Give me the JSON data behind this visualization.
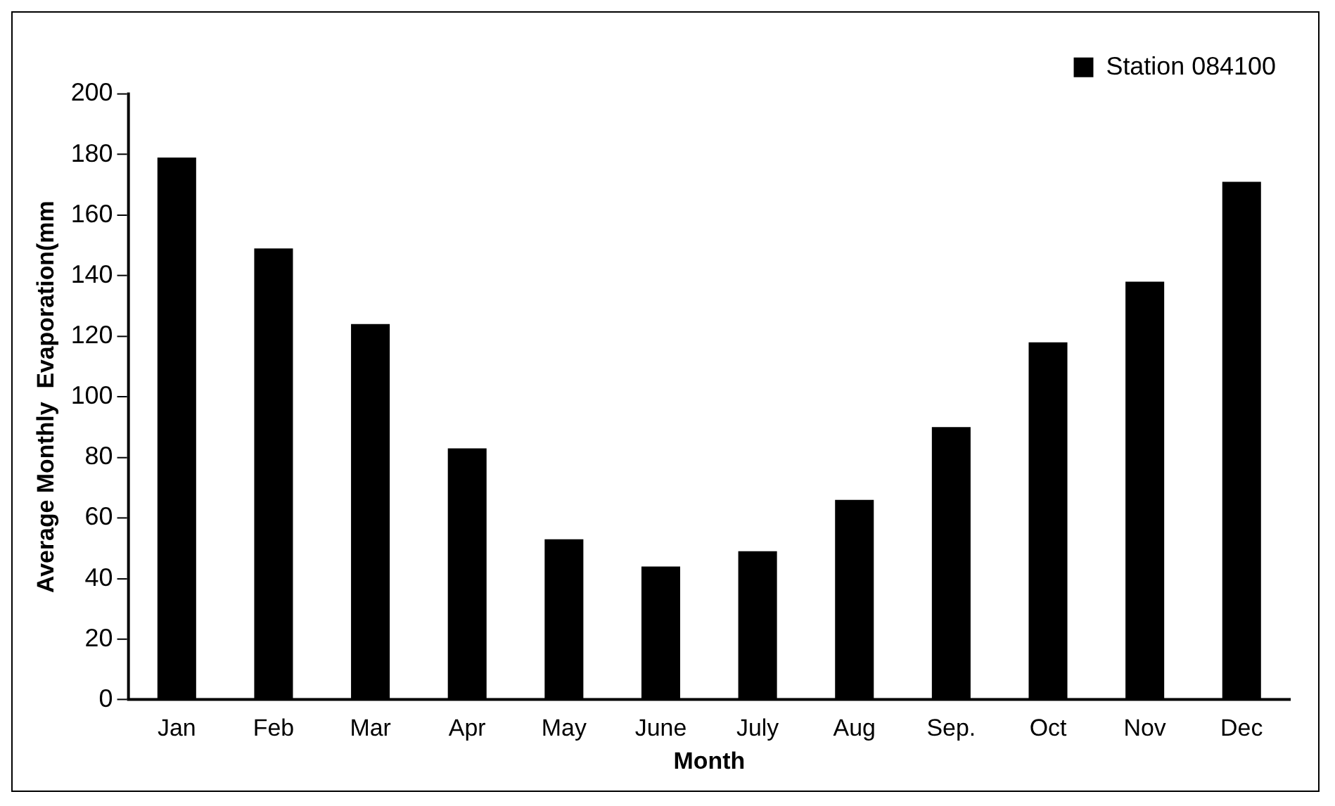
{
  "chart_data": {
    "type": "bar",
    "xlabel": "Month",
    "ylabel": "Average Monthly  Evaporation(mm",
    "categories": [
      "Jan",
      "Feb",
      "Mar",
      "Apr",
      "May",
      "June",
      "July",
      "Aug",
      "Sep.",
      "Oct",
      "Nov",
      "Dec"
    ],
    "series": [
      {
        "name": "Station 084100",
        "color": "#000000",
        "values": [
          179,
          149,
          124,
          83,
          53,
          44,
          49,
          66,
          90,
          118,
          138,
          171
        ]
      }
    ],
    "ylim": [
      0,
      200
    ],
    "yticks": [
      0,
      20,
      40,
      60,
      80,
      100,
      120,
      140,
      160,
      180,
      200
    ],
    "grid": false,
    "legend": "top right"
  }
}
